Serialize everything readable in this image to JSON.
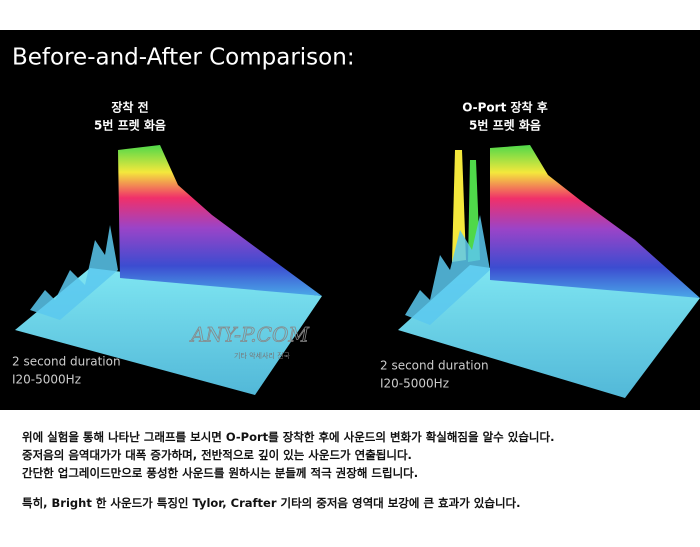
{
  "title": "Before-and-After Comparison:",
  "panels": [
    {
      "caption": [
        "장착 전",
        "5번 프렛 화음"
      ],
      "duration": "2 second duration",
      "range": "I20-5000Hz"
    },
    {
      "caption": [
        "O-Port 장착 후",
        "5번 프렛 화음"
      ],
      "duration": "2 second duration",
      "range": "I20-5000Hz"
    }
  ],
  "watermark": {
    "brand": "ANY-P.COM",
    "tagline": "기타 악세사리 전국"
  },
  "body": {
    "paragraphs": [
      [
        "위에 실험을 통해 나타난 그래프를 보시면 O-Port를 장착한 후에 사운드의 변화가 확실해짐을 알수 있습니다.",
        "중저음의 음역대가가 대폭 증가하며, 전반적으로 깊이 있는 사운드가 연출됩니다.",
        "간단한 업그레이드만으로 풍성한 사운드를 원하시는 분들께 적극 권장해 드립니다."
      ],
      [
        "특히, Bright 한 사운드가 특징인 Tylor, Crafter 기타의 중저음 영역대 보강에 큰 효과가 있습니다."
      ]
    ]
  }
}
